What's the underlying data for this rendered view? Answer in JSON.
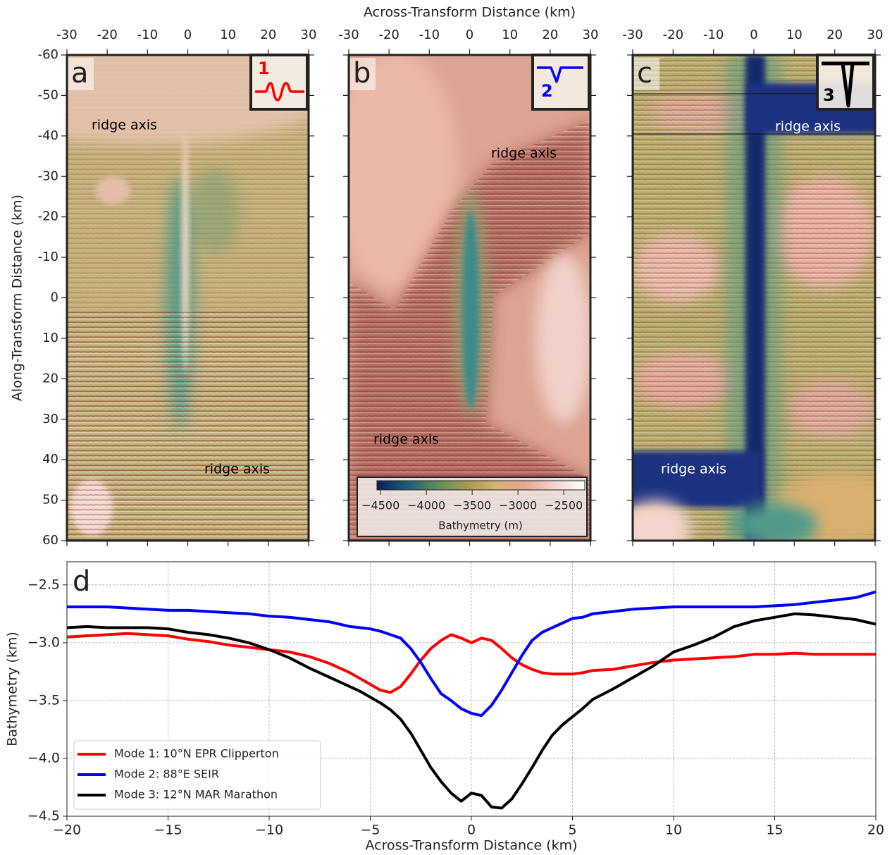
{
  "chart_data": [
    {
      "type": "map",
      "panel_label": "a",
      "mode_label": "1",
      "mode_color": "#ff0000",
      "ylabel": "Along-Transform Distance (km)",
      "xlim": [
        -30,
        30
      ],
      "xticks": [
        -30,
        -20,
        -10,
        0,
        10,
        20,
        30
      ],
      "ylim": [
        -60,
        60
      ],
      "yticks": [
        -60,
        -50,
        -40,
        -30,
        -20,
        -10,
        0,
        10,
        20,
        30,
        40,
        50,
        60
      ],
      "y_inverted": true,
      "ytick_labels": true,
      "annotations": [
        "ridge axis",
        "ridge axis"
      ],
      "annotation_color": "#000000"
    },
    {
      "type": "map",
      "panel_label": "b",
      "mode_label": "2",
      "mode_color": "#0000ff",
      "xlabel": "Across-Transform Distance (km)",
      "xlim": [
        -30,
        30
      ],
      "xticks": [
        -30,
        -20,
        -10,
        0,
        10,
        20,
        30
      ],
      "ylim": [
        -60,
        60
      ],
      "yticks": [
        -60,
        -50,
        -40,
        -30,
        -20,
        -10,
        0,
        10,
        20,
        30,
        40,
        50,
        60
      ],
      "y_inverted": true,
      "ytick_labels": false,
      "annotations": [
        "ridge axis",
        "ridge axis"
      ],
      "annotation_color": "#000000",
      "colorbar": {
        "label": "Bathymetry (m)",
        "lim": [
          -4540,
          -2270
        ],
        "ticks": [
          {
            "value": -4500,
            "label": "−4500"
          },
          {
            "value": -4000,
            "label": "−4000"
          },
          {
            "value": -3500,
            "label": "−3500"
          },
          {
            "value": -3000,
            "label": "−3000"
          },
          {
            "value": -2500,
            "label": "−2500"
          }
        ],
        "colors": [
          "#0c1f5c",
          "#1d5a7a",
          "#5f8c5a",
          "#a49a50",
          "#d8b070",
          "#e8a895",
          "#f6d4ce",
          "#ffffff"
        ]
      }
    },
    {
      "type": "map",
      "panel_label": "c",
      "mode_label": "3",
      "mode_color": "#000000",
      "xlim": [
        -30,
        30
      ],
      "xticks": [
        -30,
        -20,
        -10,
        0,
        10,
        20,
        30
      ],
      "ylim": [
        -60,
        60
      ],
      "yticks": [
        -60,
        -50,
        -40,
        -30,
        -20,
        -10,
        0,
        10,
        20,
        30,
        40,
        50,
        60
      ],
      "y_inverted": true,
      "ytick_labels": false,
      "annotations": [
        "ridge axis",
        "ridge axis"
      ],
      "annotation_color": "#ffffff"
    },
    {
      "type": "line",
      "panel_label": "d",
      "xlabel": "Across-Transform Distance (km)",
      "ylabel": "Bathymetry (km)",
      "x": [
        -20,
        -19,
        -18,
        -17,
        -16,
        -15,
        -14,
        -13,
        -12,
        -11,
        -10,
        -9,
        -8,
        -7,
        -6,
        -5.5,
        -5,
        -4.5,
        -4,
        -3.5,
        -3,
        -2.5,
        -2,
        -1.5,
        -1,
        -0.5,
        0,
        0.5,
        1,
        1.5,
        2,
        2.5,
        3,
        3.5,
        4,
        4.5,
        5,
        5.5,
        6,
        7,
        8,
        9,
        10,
        11,
        12,
        13,
        14,
        15,
        16,
        17,
        18,
        19,
        20
      ],
      "series": [
        {
          "name": "Mode 1: 10°N EPR Clipperton",
          "color": "#ff0000",
          "values": [
            -2.95,
            -2.94,
            -2.93,
            -2.92,
            -2.93,
            -2.94,
            -2.97,
            -2.99,
            -3.02,
            -3.04,
            -3.06,
            -3.08,
            -3.12,
            -3.18,
            -3.26,
            -3.31,
            -3.36,
            -3.41,
            -3.43,
            -3.38,
            -3.27,
            -3.15,
            -3.05,
            -2.98,
            -2.93,
            -2.96,
            -3.0,
            -2.96,
            -2.98,
            -3.05,
            -3.13,
            -3.19,
            -3.23,
            -3.26,
            -3.27,
            -3.27,
            -3.27,
            -3.26,
            -3.24,
            -3.23,
            -3.2,
            -3.17,
            -3.15,
            -3.14,
            -3.13,
            -3.12,
            -3.1,
            -3.1,
            -3.09,
            -3.1,
            -3.1,
            -3.1,
            -3.1
          ]
        },
        {
          "name": "Mode 2: 88°E SEIR",
          "color": "#0000ff",
          "values": [
            -2.69,
            -2.69,
            -2.69,
            -2.7,
            -2.71,
            -2.72,
            -2.72,
            -2.73,
            -2.74,
            -2.75,
            -2.77,
            -2.78,
            -2.8,
            -2.82,
            -2.86,
            -2.87,
            -2.88,
            -2.9,
            -2.93,
            -2.96,
            -3.05,
            -3.17,
            -3.31,
            -3.44,
            -3.5,
            -3.57,
            -3.61,
            -3.63,
            -3.54,
            -3.41,
            -3.26,
            -3.11,
            -2.98,
            -2.91,
            -2.87,
            -2.83,
            -2.79,
            -2.78,
            -2.75,
            -2.73,
            -2.71,
            -2.7,
            -2.69,
            -2.69,
            -2.69,
            -2.69,
            -2.69,
            -2.68,
            -2.67,
            -2.65,
            -2.63,
            -2.61,
            -2.56
          ]
        },
        {
          "name": "Mode 3: 12°N MAR Marathon",
          "color": "#000000",
          "values": [
            -2.87,
            -2.86,
            -2.87,
            -2.87,
            -2.87,
            -2.88,
            -2.91,
            -2.93,
            -2.96,
            -3.0,
            -3.06,
            -3.13,
            -3.22,
            -3.3,
            -3.38,
            -3.42,
            -3.47,
            -3.52,
            -3.58,
            -3.66,
            -3.78,
            -3.93,
            -4.08,
            -4.2,
            -4.3,
            -4.37,
            -4.3,
            -4.32,
            -4.42,
            -4.43,
            -4.35,
            -4.22,
            -4.08,
            -3.93,
            -3.8,
            -3.71,
            -3.64,
            -3.57,
            -3.49,
            -3.4,
            -3.3,
            -3.2,
            -3.08,
            -3.02,
            -2.95,
            -2.86,
            -2.81,
            -2.78,
            -2.75,
            -2.76,
            -2.78,
            -2.8,
            -2.84
          ]
        }
      ],
      "xlim": [
        -20,
        20
      ],
      "xticks": [
        {
          "value": -20,
          "label": "−20"
        },
        {
          "value": -15,
          "label": "−15"
        },
        {
          "value": -10,
          "label": "−10"
        },
        {
          "value": -5,
          "label": "−5"
        },
        0,
        5,
        10,
        15,
        20
      ],
      "ylim": [
        -4.5,
        -2.3
      ],
      "yticks": [
        {
          "value": -4.5,
          "label": "−4.5"
        },
        {
          "value": -4.0,
          "label": "−4.0"
        },
        {
          "value": -3.5,
          "label": "−3.5"
        },
        {
          "value": -3.0,
          "label": "−3.0"
        },
        {
          "value": -2.5,
          "label": "−2.5"
        }
      ],
      "grid": true,
      "legend": "lower left"
    }
  ]
}
